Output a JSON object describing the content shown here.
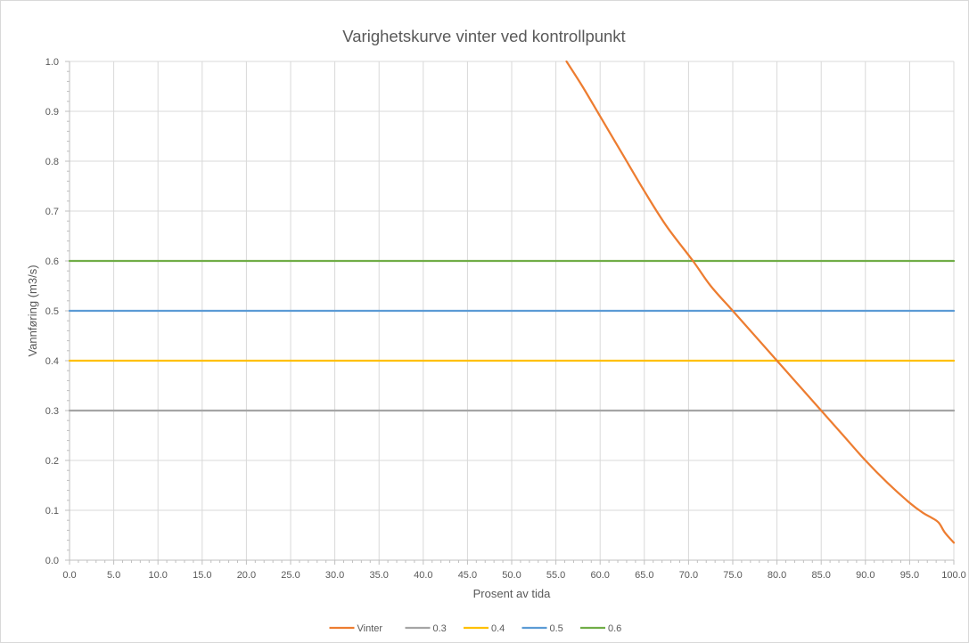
{
  "chart_data": {
    "type": "line",
    "title": "Varighetskurve vinter ved kontrollpunkt",
    "xlabel": "Prosent av tida",
    "ylabel": "Vannføring (m3/s)",
    "xlim": [
      0,
      100
    ],
    "ylim": [
      0,
      1.0
    ],
    "x_ticks": [
      "0.0",
      "5.0",
      "10.0",
      "15.0",
      "20.0",
      "25.0",
      "30.0",
      "35.0",
      "40.0",
      "45.0",
      "50.0",
      "55.0",
      "60.0",
      "65.0",
      "70.0",
      "75.0",
      "80.0",
      "85.0",
      "90.0",
      "95.0",
      "100.0"
    ],
    "y_ticks": [
      "0.0",
      "0.1",
      "0.2",
      "0.3",
      "0.4",
      "0.5",
      "0.6",
      "0.7",
      "0.8",
      "0.9",
      "1.0"
    ],
    "grid": true,
    "legend_position": "bottom",
    "series": [
      {
        "name": "Vinter",
        "color": "#ed7d31",
        "x": [
          56.2,
          58.0,
          60.0,
          62.5,
          65.0,
          67.5,
          70.5,
          72.5,
          75.0,
          77.5,
          80.0,
          82.5,
          85.0,
          87.5,
          90.0,
          92.5,
          95.0,
          96.5,
          97.5,
          98.3,
          99.0,
          100.0
        ],
        "y": [
          1.0,
          0.95,
          0.89,
          0.815,
          0.74,
          0.67,
          0.6,
          0.55,
          0.5,
          0.45,
          0.4,
          0.35,
          0.3,
          0.25,
          0.2,
          0.155,
          0.115,
          0.095,
          0.085,
          0.075,
          0.055,
          0.035
        ]
      },
      {
        "name": "0.3",
        "color": "#a5a5a5",
        "x": [
          0,
          100
        ],
        "y": [
          0.3,
          0.3
        ]
      },
      {
        "name": "0.4",
        "color": "#ffc000",
        "x": [
          0,
          100
        ],
        "y": [
          0.4,
          0.4
        ]
      },
      {
        "name": "0.5",
        "color": "#5b9bd5",
        "x": [
          0,
          100
        ],
        "y": [
          0.5,
          0.5
        ]
      },
      {
        "name": "0.6",
        "color": "#70ad47",
        "x": [
          0,
          100
        ],
        "y": [
          0.6,
          0.6
        ]
      }
    ]
  }
}
